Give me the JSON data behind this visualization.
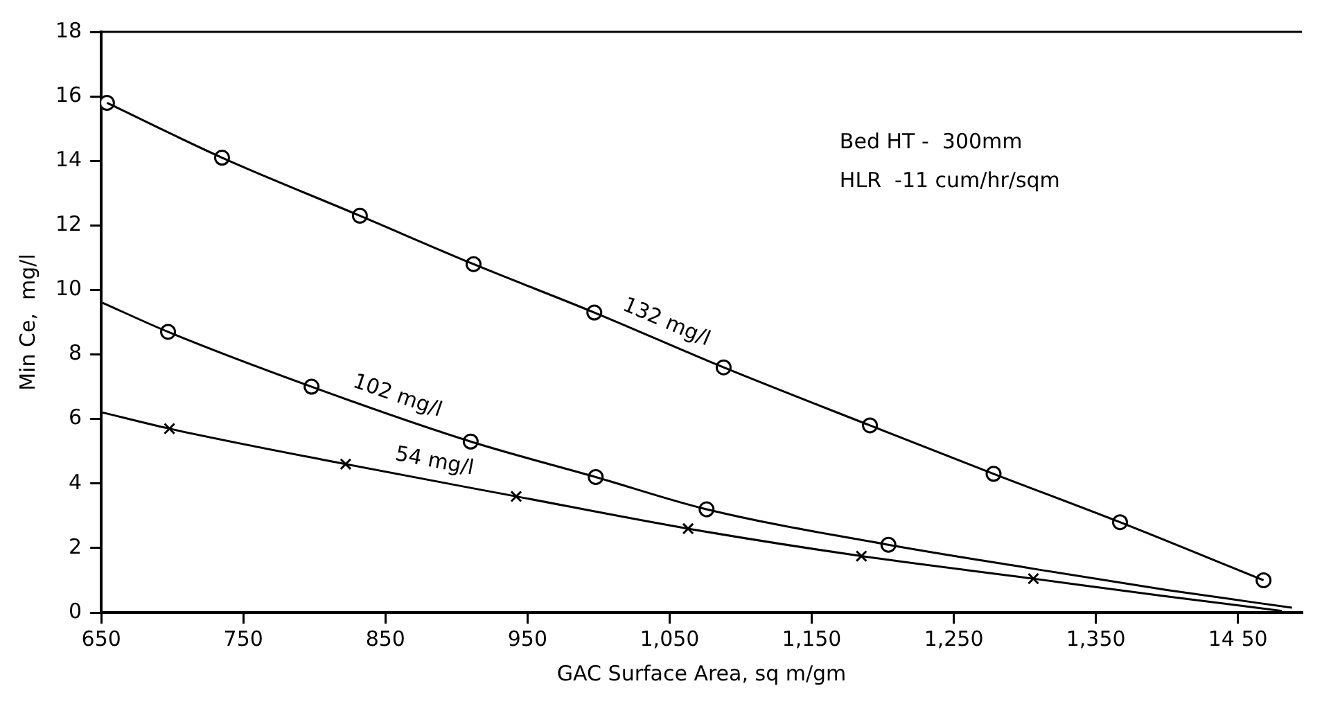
{
  "chart_data": {
    "type": "line",
    "xlabel": "GAC Surface Area, sq m/gm",
    "ylabel": "Min Ce,  mg/l",
    "xlim": [
      650,
      1495
    ],
    "xticks": [
      650,
      750,
      850,
      950,
      {
        "value": 1050,
        "label": "1,050"
      },
      {
        "value": 1150,
        "label": "1,150"
      },
      {
        "value": 1250,
        "label": "1,250"
      },
      {
        "value": 1350,
        "label": "1,350"
      },
      {
        "value": 1450,
        "label": "14 50"
      }
    ],
    "ylim": [
      0,
      18
    ],
    "yticks": [
      0,
      2,
      4,
      6,
      8,
      10,
      12,
      14,
      16,
      18
    ],
    "grid": false,
    "legend": false,
    "line_style": "solid",
    "annotations": [
      "Bed HT -  300mm",
      "HLR  -11 cum/hr/sqm"
    ],
    "series": [
      {
        "type": "line",
        "name": "132 mg/l",
        "color": "#000000",
        "marker": "none",
        "x": [
          654,
          735,
          832,
          912,
          997,
          1088,
          1191,
          1278,
          1367,
          1468
        ],
        "values": [
          15.8,
          14.1,
          12.3,
          10.8,
          9.3,
          7.6,
          5.8,
          4.3,
          2.8,
          1.0
        ]
      },
      {
        "type": "line",
        "name": "102 mg/l",
        "color": "#000000",
        "marker": "none",
        "x": [
          651,
          697,
          798,
          910,
          998,
          1076,
          1204,
          1300,
          1400,
          1488
        ],
        "values": [
          9.6,
          8.7,
          7.0,
          5.3,
          4.2,
          3.2,
          2.1,
          1.4,
          0.7,
          0.15
        ]
      },
      {
        "type": "line",
        "name": "54 mg/l",
        "color": "#000000",
        "marker": "none",
        "x": [
          651,
          698,
          822,
          942,
          1063,
          1185,
          1306,
          1400,
          1481
        ],
        "values": [
          6.2,
          5.7,
          4.6,
          3.6,
          2.6,
          1.75,
          1.05,
          0.5,
          0.05
        ]
      },
      {
        "type": "scatter",
        "color": "#000000",
        "marker": "circle",
        "x": [
          654,
          735,
          832,
          912,
          997,
          1088,
          1191,
          1278,
          1367,
          1468
        ],
        "values": [
          15.8,
          14.1,
          12.3,
          10.8,
          9.3,
          7.6,
          5.8,
          4.3,
          2.8,
          1.0
        ]
      },
      {
        "type": "scatter",
        "color": "#000000",
        "marker": "circle",
        "x": [
          697,
          798,
          910,
          998,
          1076,
          1204
        ],
        "values": [
          8.7,
          7.0,
          5.3,
          4.2,
          3.2,
          2.1
        ]
      },
      {
        "type": "scatter",
        "color": "#000000",
        "marker": "cross",
        "x": [
          698,
          822,
          942,
          1063,
          1185,
          1306
        ],
        "values": [
          5.7,
          4.6,
          3.6,
          2.6,
          1.75,
          1.05
        ]
      }
    ]
  }
}
